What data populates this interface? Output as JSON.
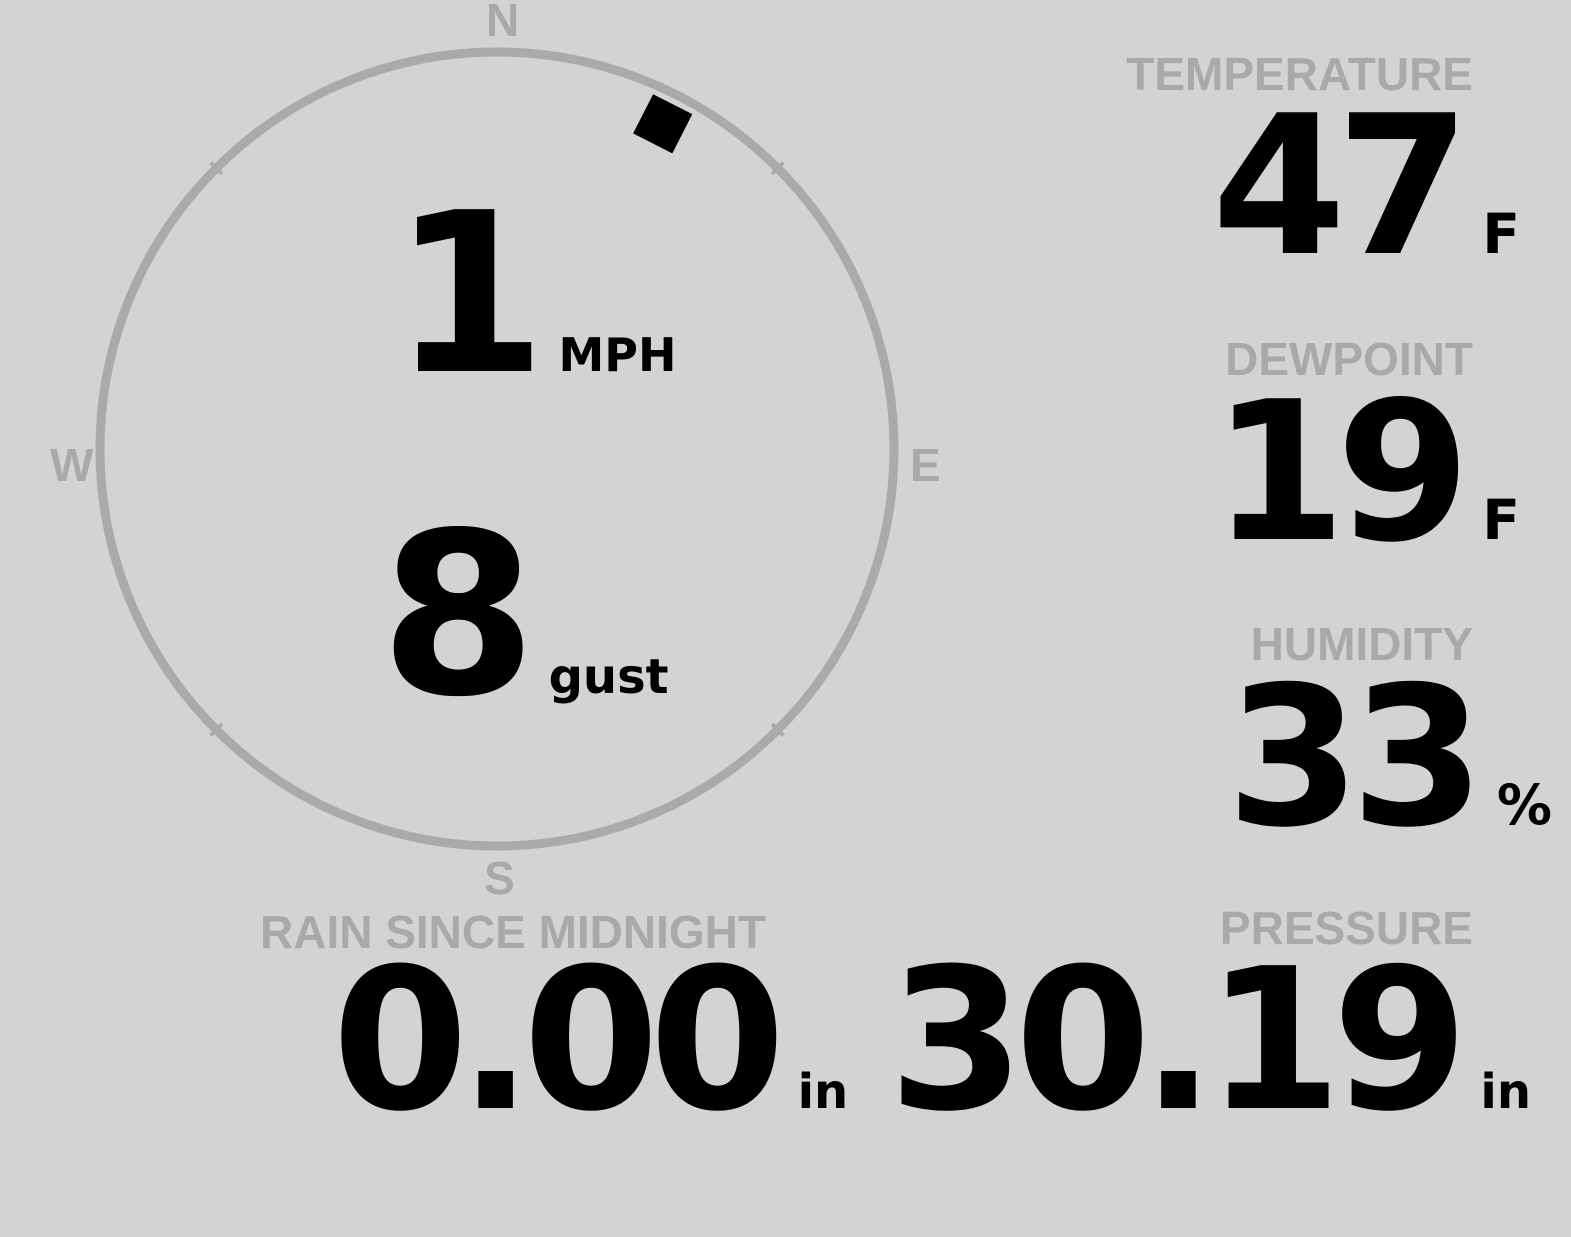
{
  "wind": {
    "speed": "1",
    "speed_unit": "MPH",
    "gust": "8",
    "gust_label": "gust",
    "direction_deg": 27,
    "compass": {
      "n": "N",
      "e": "E",
      "s": "S",
      "w": "W"
    }
  },
  "temperature": {
    "label": "TEMPERATURE",
    "value": "47",
    "unit": "F"
  },
  "dewpoint": {
    "label": "DEWPOINT",
    "value": "19",
    "unit": "F"
  },
  "humidity": {
    "label": "HUMIDITY",
    "value": "33",
    "unit": "%"
  },
  "rain": {
    "label": "RAIN SINCE MIDNIGHT",
    "value": "0.00",
    "unit": "in"
  },
  "pressure": {
    "label": "PRESSURE",
    "value": "30.19",
    "unit": "in"
  },
  "colors": {
    "background": "#d3d3d3",
    "dial": "#aaaaaa",
    "label": "#a9a9a9",
    "value": "#000000"
  }
}
